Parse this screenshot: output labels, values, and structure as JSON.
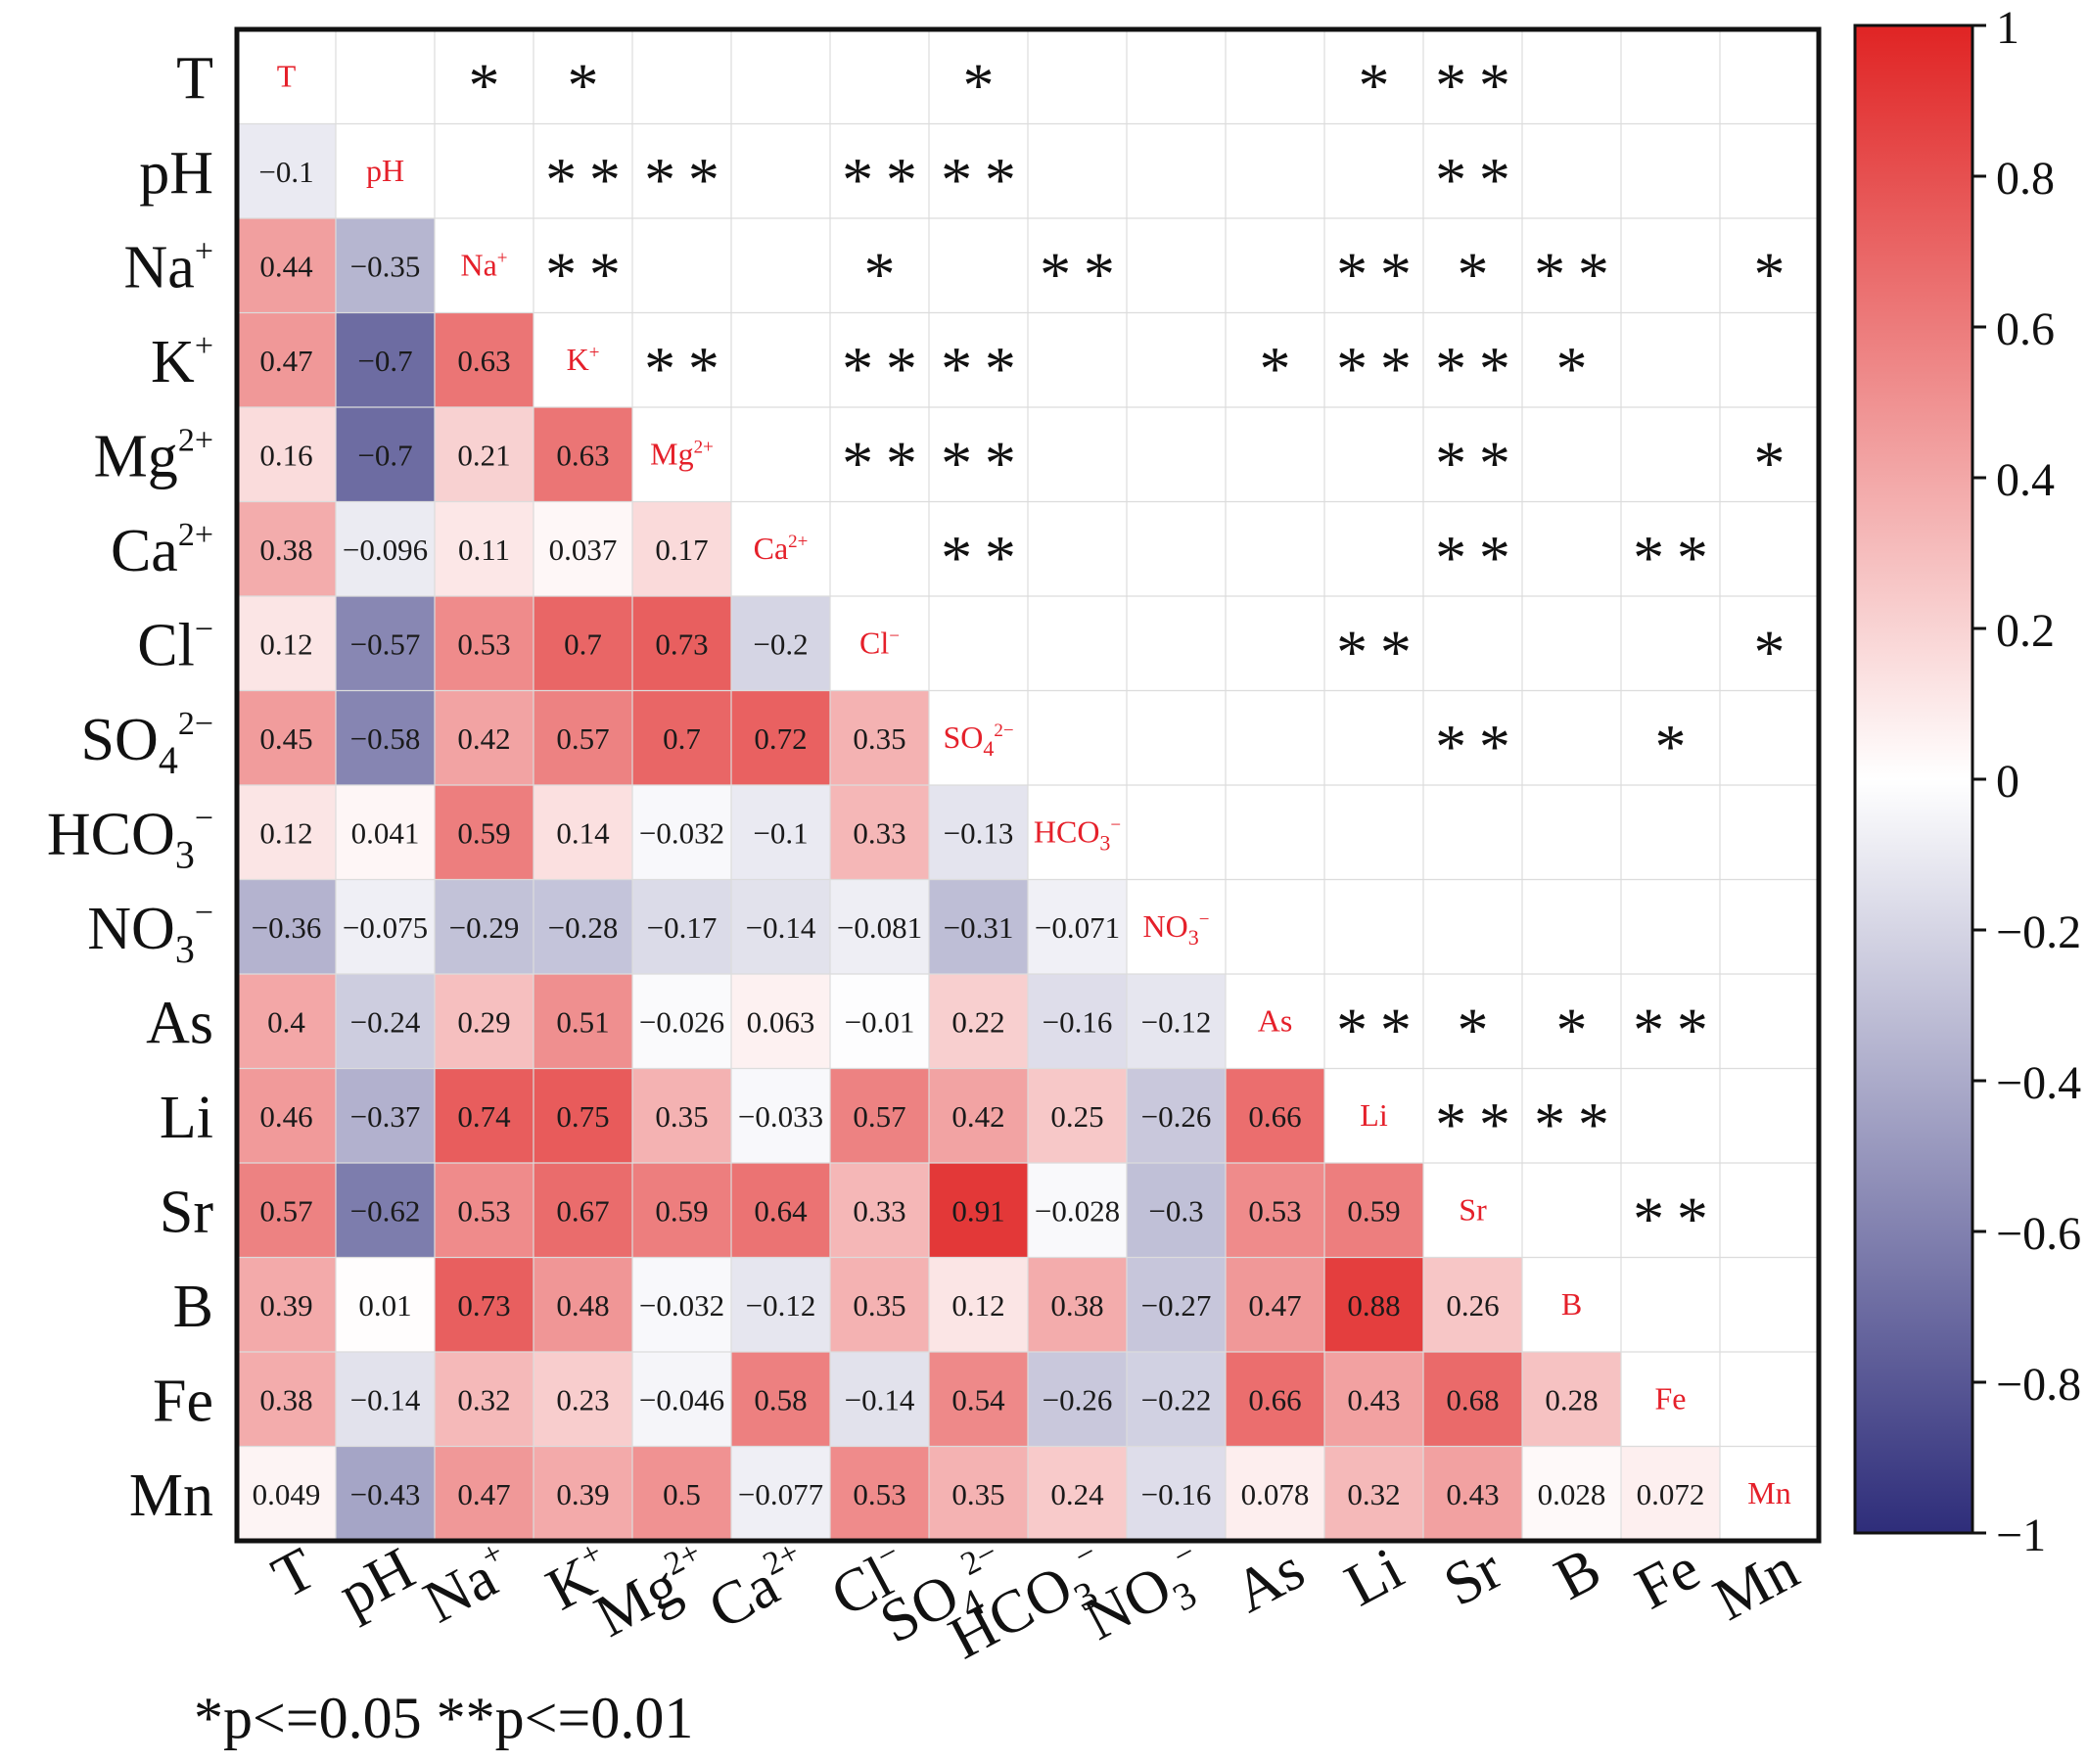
{
  "chart_data": {
    "type": "heatmap",
    "title": "",
    "variables": [
      "T",
      "pH",
      "Na+",
      "K+",
      "Mg2+",
      "Ca2+",
      "Cl-",
      "SO42-",
      "HCO3-",
      "NO3-",
      "As",
      "Li",
      "Sr",
      "B",
      "Fe",
      "Mn"
    ],
    "row_labels": [
      {
        "base": "T",
        "sup": "",
        "sub": ""
      },
      {
        "base": "pH",
        "sup": "",
        "sub": ""
      },
      {
        "base": "Na",
        "sup": "+",
        "sub": ""
      },
      {
        "base": "K",
        "sup": "+",
        "sub": ""
      },
      {
        "base": "Mg",
        "sup": "2+",
        "sub": ""
      },
      {
        "base": "Ca",
        "sup": "2+",
        "sub": ""
      },
      {
        "base": "Cl",
        "sup": "−",
        "sub": ""
      },
      {
        "base": "SO",
        "sup": "2−",
        "sub": "4"
      },
      {
        "base": "HCO",
        "sup": "−",
        "sub": "3"
      },
      {
        "base": "NO",
        "sup": "−",
        "sub": "3"
      },
      {
        "base": "As",
        "sup": "",
        "sub": ""
      },
      {
        "base": "Li",
        "sup": "",
        "sub": ""
      },
      {
        "base": "Sr",
        "sup": "",
        "sub": ""
      },
      {
        "base": "B",
        "sup": "",
        "sub": ""
      },
      {
        "base": "Fe",
        "sup": "",
        "sub": ""
      },
      {
        "base": "Mn",
        "sup": "",
        "sub": ""
      }
    ],
    "lower_values": [
      [],
      [
        "−0.1"
      ],
      [
        "0.44",
        "−0.35"
      ],
      [
        "0.47",
        "−0.7",
        "0.63"
      ],
      [
        "0.16",
        "−0.7",
        "0.21",
        "0.63"
      ],
      [
        "0.38",
        "−0.096",
        "0.11",
        "0.037",
        "0.17"
      ],
      [
        "0.12",
        "−0.57",
        "0.53",
        "0.7",
        "0.73",
        "−0.2"
      ],
      [
        "0.45",
        "−0.58",
        "0.42",
        "0.57",
        "0.7",
        "0.72",
        "0.35"
      ],
      [
        "0.12",
        "0.041",
        "0.59",
        "0.14",
        "−0.032",
        "−0.1",
        "0.33",
        "−0.13"
      ],
      [
        "−0.36",
        "−0.075",
        "−0.29",
        "−0.28",
        "−0.17",
        "−0.14",
        "−0.081",
        "−0.31",
        "−0.071"
      ],
      [
        "0.4",
        "−0.24",
        "0.29",
        "0.51",
        "−0.026",
        "0.063",
        "−0.01",
        "0.22",
        "−0.16",
        "−0.12"
      ],
      [
        "0.46",
        "−0.37",
        "0.74",
        "0.75",
        "0.35",
        "−0.033",
        "0.57",
        "0.42",
        "0.25",
        "−0.26",
        "0.66"
      ],
      [
        "0.57",
        "−0.62",
        "0.53",
        "0.67",
        "0.59",
        "0.64",
        "0.33",
        "0.91",
        "−0.028",
        "−0.3",
        "0.53",
        "0.59"
      ],
      [
        "0.39",
        "0.01",
        "0.73",
        "0.48",
        "−0.032",
        "−0.12",
        "0.35",
        "0.12",
        "0.38",
        "−0.27",
        "0.47",
        "0.88",
        "0.26"
      ],
      [
        "0.38",
        "−0.14",
        "0.32",
        "0.23",
        "−0.046",
        "0.58",
        "−0.14",
        "0.54",
        "−0.26",
        "−0.22",
        "0.66",
        "0.43",
        "0.68",
        "0.28"
      ],
      [
        "0.049",
        "−0.43",
        "0.47",
        "0.39",
        "0.5",
        "−0.077",
        "0.53",
        "0.35",
        "0.24",
        "−0.16",
        "0.078",
        "0.32",
        "0.43",
        "0.028",
        "0.072"
      ]
    ],
    "upper_stars": [
      [
        "",
        "",
        "*",
        "*",
        "",
        "",
        "",
        "*",
        "",
        "",
        "",
        "*",
        "**",
        "",
        "",
        ""
      ],
      [
        "",
        "",
        "",
        "**",
        "**",
        "",
        "**",
        "**",
        "",
        "",
        "",
        "",
        "**",
        "",
        "",
        ""
      ],
      [
        "",
        "",
        "",
        "**",
        "",
        "",
        "*",
        "",
        "**",
        "",
        "",
        "**",
        "*",
        "**",
        "",
        "*"
      ],
      [
        "",
        "",
        "",
        "",
        "**",
        "",
        "**",
        "**",
        "",
        "",
        "*",
        "**",
        "**",
        "*",
        "",
        ""
      ],
      [
        "",
        "",
        "",
        "",
        "",
        "",
        "**",
        "**",
        "",
        "",
        "",
        "",
        "**",
        "",
        "",
        "*"
      ],
      [
        "",
        "",
        "",
        "",
        "",
        "",
        "",
        "**",
        "",
        "",
        "",
        "",
        "**",
        "",
        "**",
        ""
      ],
      [
        "",
        "",
        "",
        "",
        "",
        "",
        "",
        "",
        "",
        "",
        "",
        "**",
        "",
        "",
        "",
        "*"
      ],
      [
        "",
        "",
        "",
        "",
        "",
        "",
        "",
        "",
        "",
        "",
        "",
        "",
        "**",
        "",
        "*",
        ""
      ],
      [
        "",
        "",
        "",
        "",
        "",
        "",
        "",
        "",
        "",
        "",
        "",
        "",
        "",
        "",
        "",
        ""
      ],
      [
        "",
        "",
        "",
        "",
        "",
        "",
        "",
        "",
        "",
        "",
        "",
        "",
        "",
        "",
        "",
        ""
      ],
      [
        "",
        "",
        "",
        "",
        "",
        "",
        "",
        "",
        "",
        "",
        "",
        "**",
        "*",
        "*",
        "**",
        ""
      ],
      [
        "",
        "",
        "",
        "",
        "",
        "",
        "",
        "",
        "",
        "",
        "",
        "",
        "**",
        "**",
        "",
        ""
      ],
      [
        "",
        "",
        "",
        "",
        "",
        "",
        "",
        "",
        "",
        "",
        "",
        "",
        "",
        "",
        "**",
        ""
      ],
      [
        "",
        "",
        "",
        "",
        "",
        "",
        "",
        "",
        "",
        "",
        "",
        "",
        "",
        "",
        "",
        ""
      ],
      [
        "",
        "",
        "",
        "",
        "",
        "",
        "",
        "",
        "",
        "",
        "",
        "",
        "",
        "",
        "",
        ""
      ],
      [
        "",
        "",
        "",
        "",
        "",
        "",
        "",
        "",
        "",
        "",
        "",
        "",
        "",
        "",
        "",
        ""
      ]
    ],
    "colorbar": {
      "min": -1,
      "max": 1,
      "ticks": [
        "1",
        "0.8",
        "0.6",
        "0.4",
        "0.2",
        "0",
        "−0.2",
        "−0.4",
        "−0.6",
        "−0.8",
        "−1"
      ],
      "tick_values": [
        1,
        0.8,
        0.6,
        0.4,
        0.2,
        0,
        -0.2,
        -0.4,
        -0.6,
        -0.8,
        -1
      ],
      "colors": {
        "low": "#2e2d7a",
        "mid": "#ffffff",
        "high": "#e02424"
      }
    },
    "label_color": "#e5202a",
    "footnote": "*p<=0.05 **p<=0.01"
  }
}
